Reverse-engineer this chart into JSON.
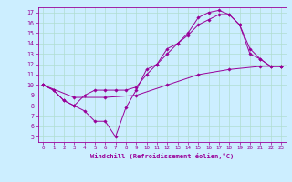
{
  "xlabel": "Windchill (Refroidissement éolien,°C)",
  "background_color": "#cceeff",
  "grid_color": "#b0ddd0",
  "line_color": "#990099",
  "xlim": [
    -0.5,
    23.5
  ],
  "ylim": [
    4.5,
    17.5
  ],
  "xticks": [
    0,
    1,
    2,
    3,
    4,
    5,
    6,
    7,
    8,
    9,
    10,
    11,
    12,
    13,
    14,
    15,
    16,
    17,
    18,
    19,
    20,
    21,
    22,
    23
  ],
  "yticks": [
    5,
    6,
    7,
    8,
    9,
    10,
    11,
    12,
    13,
    14,
    15,
    16,
    17
  ],
  "line1_x": [
    0,
    1,
    2,
    3,
    4,
    5,
    6,
    7,
    8,
    9,
    10,
    11,
    12,
    13,
    14,
    15,
    16,
    17,
    18,
    19,
    20,
    21,
    22,
    23
  ],
  "line1_y": [
    10,
    9.5,
    8.5,
    8.0,
    7.5,
    6.5,
    6.5,
    5.0,
    7.8,
    9.5,
    11.5,
    12.0,
    13.5,
    14.0,
    15.0,
    16.5,
    17.0,
    17.2,
    16.8,
    15.8,
    13.0,
    12.5,
    11.8,
    11.8
  ],
  "line2_x": [
    0,
    1,
    2,
    3,
    4,
    5,
    6,
    7,
    8,
    9,
    10,
    11,
    12,
    13,
    14,
    15,
    16,
    17,
    18,
    19,
    20,
    21,
    22,
    23
  ],
  "line2_y": [
    10,
    9.5,
    8.5,
    8.0,
    9.0,
    9.5,
    9.5,
    9.5,
    9.5,
    9.8,
    11.0,
    12.0,
    13.0,
    14.0,
    14.8,
    15.8,
    16.3,
    16.8,
    16.8,
    15.8,
    13.5,
    12.5,
    11.8,
    11.8
  ],
  "line3_x": [
    0,
    3,
    6,
    9,
    12,
    15,
    18,
    21,
    23
  ],
  "line3_y": [
    10,
    8.8,
    8.8,
    9.0,
    10.0,
    11.0,
    11.5,
    11.8,
    11.8
  ],
  "marker": "D",
  "markersize": 1.8,
  "linewidth": 0.7
}
